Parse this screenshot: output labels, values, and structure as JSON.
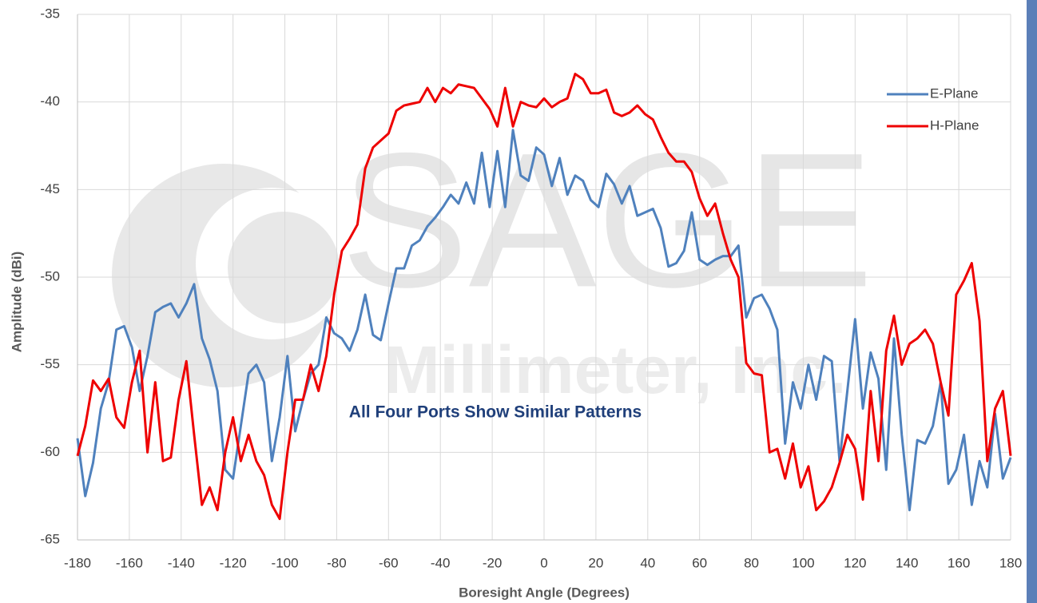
{
  "chart_data": {
    "type": "line",
    "x_label": "Boresight Angle (Degrees)",
    "y_label": "Amplitude (dBi)",
    "annotation": "All Four Ports Show Similar Patterns",
    "watermark": [
      "SAGE",
      "Millimeter, Inc."
    ],
    "xlim": [
      -180,
      180
    ],
    "ylim": [
      -65,
      -35
    ],
    "xticks": [
      -180,
      -160,
      -140,
      -120,
      -100,
      -80,
      -60,
      -40,
      -20,
      0,
      20,
      40,
      60,
      80,
      100,
      120,
      140,
      160,
      180
    ],
    "yticks": [
      -35,
      -40,
      -45,
      -50,
      -55,
      -60,
      -65
    ],
    "grid": true,
    "legend": "upper right",
    "x": [
      -180,
      -177,
      -174,
      -171,
      -168,
      -165,
      -162,
      -159,
      -156,
      -153,
      -150,
      -147,
      -144,
      -141,
      -138,
      -135,
      -132,
      -129,
      -126,
      -123,
      -120,
      -117,
      -114,
      -111,
      -108,
      -105,
      -102,
      -99,
      -96,
      -93,
      -90,
      -87,
      -84,
      -81,
      -78,
      -75,
      -72,
      -69,
      -66,
      -63,
      -60,
      -57,
      -54,
      -51,
      -48,
      -45,
      -42,
      -39,
      -36,
      -33,
      -30,
      -27,
      -24,
      -21,
      -18,
      -15,
      -12,
      -9,
      -6,
      -3,
      0,
      3,
      6,
      9,
      12,
      15,
      18,
      21,
      24,
      27,
      30,
      33,
      36,
      39,
      42,
      45,
      48,
      51,
      54,
      57,
      60,
      63,
      66,
      69,
      72,
      75,
      78,
      81,
      84,
      87,
      90,
      93,
      96,
      99,
      102,
      105,
      108,
      111,
      114,
      117,
      120,
      123,
      126,
      129,
      132,
      135,
      138,
      141,
      144,
      147,
      150,
      153,
      156,
      159,
      162,
      165,
      168,
      171,
      174,
      177,
      180
    ],
    "series": [
      {
        "name": "E-Plane",
        "color": "#4f81bd",
        "values": [
          -59.2,
          -62.5,
          -60.6,
          -57.5,
          -56.0,
          -53.0,
          -52.8,
          -54.0,
          -56.5,
          -54.5,
          -52.0,
          -51.7,
          -51.5,
          -52.3,
          -51.5,
          -50.4,
          -53.5,
          -54.7,
          -56.5,
          -61.0,
          -61.5,
          -58.5,
          -55.5,
          -55.0,
          -56.0,
          -60.5,
          -58.0,
          -54.5,
          -58.8,
          -57.0,
          -55.5,
          -55.0,
          -52.3,
          -53.2,
          -53.5,
          -54.2,
          -53.0,
          -51.0,
          -53.3,
          -53.6,
          -51.5,
          -49.5,
          -49.5,
          -48.2,
          -47.9,
          -47.1,
          -46.6,
          -46.0,
          -45.3,
          -45.8,
          -44.6,
          -45.8,
          -42.9,
          -46.0,
          -42.8,
          -46.0,
          -41.6,
          -44.2,
          -44.5,
          -42.6,
          -43.0,
          -44.8,
          -43.2,
          -45.3,
          -44.2,
          -44.5,
          -45.6,
          -46.0,
          -44.1,
          -44.7,
          -45.8,
          -44.8,
          -46.5,
          -46.3,
          -46.1,
          -47.2,
          -49.4,
          -49.2,
          -48.5,
          -46.3,
          -49.0,
          -49.3,
          -49.0,
          -48.8,
          -48.8,
          -48.2,
          -52.3,
          -51.2,
          -51.0,
          -51.8,
          -53.0,
          -59.5,
          -56.0,
          -57.5,
          -55.0,
          -57.0,
          -54.5,
          -54.8,
          -60.5,
          -56.5,
          -52.4,
          -57.5,
          -54.3,
          -55.8,
          -61.0,
          -53.5,
          -59.0,
          -63.3,
          -59.3,
          -59.5,
          -58.5,
          -56.0,
          -61.8,
          -61.0,
          -59.0,
          -63.0,
          -60.5,
          -62.0,
          -57.8,
          -61.5,
          -60.3
        ]
      },
      {
        "name": "H-Plane",
        "color": "#ee0000",
        "values": [
          -60.2,
          -58.5,
          -55.9,
          -56.5,
          -55.8,
          -58.0,
          -58.6,
          -56.0,
          -54.2,
          -60.0,
          -56.0,
          -60.5,
          -60.3,
          -57.0,
          -54.8,
          -59.0,
          -63.0,
          -62.0,
          -63.3,
          -60.0,
          -58.0,
          -60.5,
          -59.0,
          -60.5,
          -61.3,
          -63.0,
          -63.8,
          -60.0,
          -57.0,
          -57.0,
          -55.0,
          -56.5,
          -54.5,
          -51.0,
          -48.5,
          -47.8,
          -47.0,
          -43.8,
          -42.6,
          -42.2,
          -41.8,
          -40.5,
          -40.2,
          -40.1,
          -40.0,
          -39.2,
          -40.0,
          -39.2,
          -39.5,
          -39.0,
          -39.1,
          -39.2,
          -39.8,
          -40.4,
          -41.4,
          -39.2,
          -41.4,
          -40.0,
          -40.2,
          -40.3,
          -39.8,
          -40.3,
          -40.0,
          -39.8,
          -38.4,
          -38.7,
          -39.5,
          -39.5,
          -39.3,
          -40.6,
          -40.8,
          -40.6,
          -40.2,
          -40.7,
          -41.0,
          -42.0,
          -42.9,
          -43.4,
          -43.4,
          -44.0,
          -45.5,
          -46.5,
          -45.8,
          -47.5,
          -49.0,
          -50.0,
          -54.9,
          -55.5,
          -55.6,
          -60.0,
          -59.8,
          -61.5,
          -59.5,
          -62.0,
          -60.8,
          -63.3,
          -62.8,
          -62.0,
          -60.6,
          -59.0,
          -59.8,
          -62.7,
          -56.5,
          -60.5,
          -54.2,
          -52.2,
          -55.0,
          -53.8,
          -53.5,
          -53.0,
          -53.8,
          -56.0,
          -57.9,
          -51.0,
          -50.2,
          -49.2,
          -52.5,
          -60.5,
          -57.5,
          -56.5,
          -60.2
        ]
      }
    ]
  }
}
